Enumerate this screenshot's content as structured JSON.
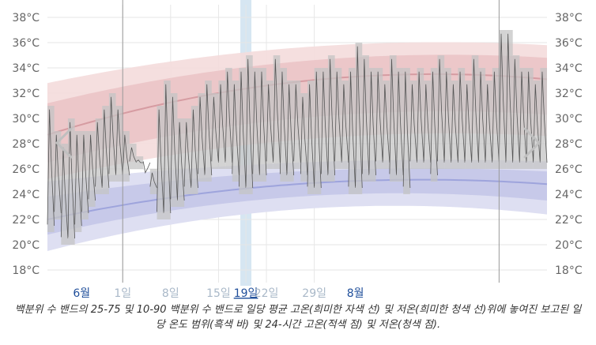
{
  "chart_data": {
    "type": "bar",
    "title": "",
    "xlabel": "",
    "ylabel": "",
    "y_unit": "°C",
    "ylim": [
      17,
      39
    ],
    "y_ticks": [
      "38°C",
      "36°C",
      "34°C",
      "32°C",
      "30°C",
      "28°C",
      "26°C",
      "24°C",
      "22°C",
      "20°C",
      "18°C"
    ],
    "y_tick_values": [
      38,
      36,
      34,
      32,
      30,
      28,
      26,
      24,
      22,
      20,
      18
    ],
    "grid": true,
    "x_range": [
      0,
      73
    ],
    "x_ticks": [
      {
        "day": 5,
        "label": "6월",
        "month": true
      },
      {
        "day": 11,
        "label": "1일",
        "month": false
      },
      {
        "day": 18,
        "label": "8일",
        "month": false
      },
      {
        "day": 25,
        "label": "15일",
        "month": false
      },
      {
        "day": 29,
        "label": "19일",
        "month": false,
        "selected": true
      },
      {
        "day": 32,
        "label": "22일",
        "month": false
      },
      {
        "day": 39,
        "label": "29일",
        "month": false
      },
      {
        "day": 45,
        "label": "8월",
        "month": true
      }
    ],
    "month_dividers": [
      11,
      66
    ],
    "selected_day": 29,
    "high_band_10_90": {
      "start": [
        25.2,
        32.8
      ],
      "mid": [
        28.3,
        35.6
      ],
      "end": [
        28.6,
        35.8
      ]
    },
    "high_band_25_75": {
      "start": [
        26.5,
        31.2
      ],
      "mid": [
        30.0,
        34.5
      ],
      "end": [
        30.3,
        34.8
      ]
    },
    "high_mean": {
      "start": 28.7,
      "mid": 32.9,
      "end": 33.1
    },
    "low_band_10_90": {
      "start": [
        19.5,
        25.0
      ],
      "mid": [
        22.8,
        26.5
      ],
      "end": [
        22.4,
        26.6
      ]
    },
    "low_band_25_75": {
      "start": [
        20.8,
        23.8
      ],
      "mid": [
        23.8,
        25.8
      ],
      "end": [
        23.5,
        25.8
      ]
    },
    "low_mean": {
      "start": 22.0,
      "mid": 24.8,
      "end": 24.8
    },
    "daily_ranges": [
      [
        21,
        31
      ],
      [
        22,
        29
      ],
      [
        20,
        28
      ],
      [
        20,
        30
      ],
      [
        21,
        29
      ],
      [
        22,
        29
      ],
      [
        23,
        29
      ],
      [
        24,
        30
      ],
      [
        24,
        31
      ],
      [
        25,
        32
      ],
      [
        25,
        31
      ],
      [
        25,
        29
      ],
      [
        26,
        28
      ],
      [
        26,
        27
      ],
      [
        26,
        26
      ],
      [
        24,
        26
      ],
      [
        22,
        31
      ],
      [
        22,
        33
      ],
      [
        23,
        32
      ],
      [
        23,
        30
      ],
      [
        24,
        30
      ],
      [
        24,
        31
      ],
      [
        25,
        32
      ],
      [
        25,
        33
      ],
      [
        26,
        32
      ],
      [
        26,
        33
      ],
      [
        26,
        34
      ],
      [
        25,
        33
      ],
      [
        24,
        34
      ],
      [
        24,
        35
      ],
      [
        25,
        34
      ],
      [
        25,
        34
      ],
      [
        26,
        33
      ],
      [
        26,
        35
      ],
      [
        25,
        34
      ],
      [
        25,
        33
      ],
      [
        26,
        33
      ],
      [
        25,
        32
      ],
      [
        24,
        33
      ],
      [
        24,
        34
      ],
      [
        25,
        34
      ],
      [
        25,
        35
      ],
      [
        26,
        34
      ],
      [
        26,
        33
      ],
      [
        24,
        34
      ],
      [
        24,
        36
      ],
      [
        25,
        35
      ],
      [
        25,
        34
      ],
      [
        26,
        34
      ],
      [
        26,
        33
      ],
      [
        25,
        35
      ],
      [
        25,
        34
      ],
      [
        24,
        34
      ],
      [
        26,
        33
      ],
      [
        26,
        34
      ],
      [
        26,
        33
      ],
      [
        25,
        34
      ],
      [
        26,
        35
      ],
      [
        26,
        34
      ],
      [
        26,
        33
      ],
      [
        26,
        34
      ],
      [
        26,
        33
      ],
      [
        26,
        35
      ],
      [
        26,
        34
      ],
      [
        26,
        33
      ],
      [
        26,
        34
      ],
      [
        26,
        37
      ],
      [
        26,
        37
      ],
      [
        26,
        35
      ],
      [
        26,
        34
      ],
      [
        26,
        34
      ],
      [
        26,
        33
      ],
      [
        26,
        34
      ]
    ],
    "hourly_temps_note": "",
    "caption": "백분위 수 밴드의 25-75 및 10-90 백분위 수 밴드로 일당 평균 고온(희미한 자색 선) 및 저온(희미한 청색 선)위에 놓여진 보고된 일당 온도 범위(흑색 바) 및 24-시간 고온(적색 점) 및 저온(청색 점)."
  },
  "colors": {
    "high_band_outer": "#f4dcdc",
    "high_band_inner": "#ebc4c6",
    "high_mean": "#d69ca2",
    "low_band_outer": "#dedff2",
    "low_band_inner": "#c7c9e9",
    "low_mean": "#9ea4dc",
    "daily_bar": "#c4c4c4",
    "daily_bar_line": "#555555",
    "selected_day": "#d6e6f2",
    "month_label": "#1f4e9a",
    "day_label": "#a9b8c8",
    "axis_label": "#666666",
    "grid": "#e6e6e6",
    "divider": "#999999"
  },
  "nav": {
    "prev_icon": "chevron-left-icon",
    "next_icon": "chevron-right-icon"
  }
}
